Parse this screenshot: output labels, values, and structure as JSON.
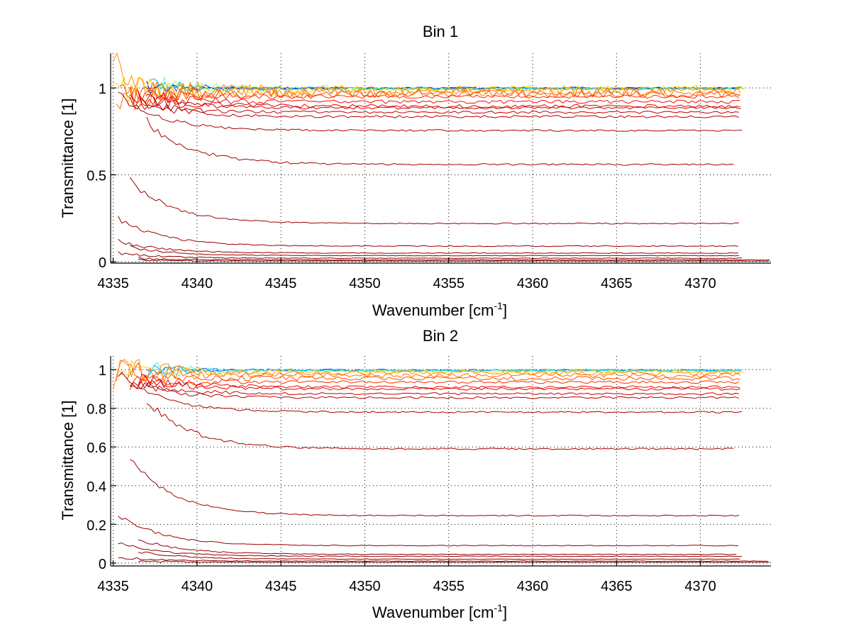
{
  "figure": {
    "background": "#ffffff"
  },
  "chart_data": [
    {
      "type": "line",
      "title": "Bin 1",
      "xlabel": "Wavenumber [cm",
      "xlabel_sup": "-1",
      "xlabel_tail": "]",
      "ylabel": "Transmittance [1]",
      "xlim": [
        4334.85,
        4374.2
      ],
      "ylim": [
        -0.008,
        1.2
      ],
      "xticks": [
        4335,
        4340,
        4345,
        4350,
        4355,
        4360,
        4365,
        4370
      ],
      "xtick_labels": [
        "4335",
        "4340",
        "4345",
        "4350",
        "4355",
        "4360",
        "4365",
        "4370"
      ],
      "yticks": [
        0,
        0.5,
        1
      ],
      "ytick_labels": [
        "0",
        "0.5",
        "1"
      ],
      "grid": true,
      "colormap": "jet (blue = highest transmittance, dark red = lowest)",
      "series": [
        {
          "name": "curve-01",
          "color": "#00008f",
          "level": 0.999,
          "x_start": 4337.0,
          "x_end": 4372.5,
          "start_offset": 0.02,
          "noise": 0.015
        },
        {
          "name": "curve-02",
          "color": "#0040ff",
          "level": 0.997,
          "x_start": 4337.0,
          "x_end": 4372.5,
          "start_offset": 0.03,
          "noise": 0.02
        },
        {
          "name": "curve-03",
          "color": "#00c0ff",
          "level": 0.996,
          "x_start": 4337.2,
          "x_end": 4372.5,
          "start_offset": 0.05,
          "noise": 0.02
        },
        {
          "name": "curve-04",
          "color": "#80ff80",
          "level": 0.995,
          "x_start": 4337.4,
          "x_end": 4372.6,
          "start_offset": 0.08,
          "noise": 0.02
        },
        {
          "name": "curve-05",
          "color": "#ffd000",
          "level": 0.993,
          "x_start": 4335.0,
          "x_end": 4372.8,
          "start_offset": 0.1,
          "noise": 0.06
        },
        {
          "name": "curve-06",
          "color": "#ff9000",
          "level": 0.985,
          "x_start": 4335.0,
          "x_end": 4372.6,
          "start_offset": 0.12,
          "noise": 0.08
        },
        {
          "name": "curve-07",
          "color": "#ff7000",
          "level": 0.975,
          "x_start": 4335.2,
          "x_end": 4372.5,
          "start_offset": 0.1,
          "noise": 0.08
        },
        {
          "name": "curve-08",
          "color": "#ff5000",
          "level": 0.965,
          "x_start": 4335.4,
          "x_end": 4372.5,
          "start_offset": 0.08,
          "noise": 0.06
        },
        {
          "name": "curve-09",
          "color": "#ff3000",
          "level": 0.95,
          "x_start": 4336.0,
          "x_end": 4372.5,
          "start_offset": 0.02,
          "noise": 0.03
        },
        {
          "name": "curve-10",
          "color": "#f01000",
          "level": 0.92,
          "x_start": 4336.5,
          "x_end": 4372.5,
          "start_offset": 0.03,
          "noise": 0.03
        },
        {
          "name": "curve-11",
          "color": "#e00000",
          "level": 0.895,
          "x_start": 4336.5,
          "x_end": 4372.5,
          "start_offset": 0.04,
          "noise": 0.03
        },
        {
          "name": "curve-12",
          "color": "#d00000",
          "level": 0.885,
          "x_start": 4337.0,
          "x_end": 4372.5,
          "start_offset": 0.05,
          "noise": 0.02
        },
        {
          "name": "curve-13",
          "color": "#c00000",
          "level": 0.86,
          "x_start": 4336.0,
          "x_end": 4372.3,
          "start_offset": 0.06,
          "noise": 0.02
        },
        {
          "name": "curve-14",
          "color": "#b80000",
          "level": 0.835,
          "x_start": 4336.0,
          "x_end": 4372.3,
          "start_offset": 0.1,
          "noise": 0.02
        },
        {
          "name": "curve-15",
          "color": "#b00000",
          "level": 0.755,
          "x_start": 4335.3,
          "x_end": 4372.5,
          "start_offset": 0.2,
          "noise": 0.015
        },
        {
          "name": "curve-16",
          "color": "#a80000",
          "level": 0.56,
          "x_start": 4337.0,
          "x_end": 4372.0,
          "start_offset": 0.25,
          "noise": 0.015
        },
        {
          "name": "curve-17",
          "color": "#a00000",
          "level": 0.22,
          "x_start": 4336.0,
          "x_end": 4372.3,
          "start_offset": 0.25,
          "noise": 0.01
        },
        {
          "name": "curve-18",
          "color": "#9c0000",
          "level": 0.09,
          "x_start": 4335.3,
          "x_end": 4372.3,
          "start_offset": 0.16,
          "noise": 0.008
        },
        {
          "name": "curve-19",
          "color": "#980000",
          "level": 0.05,
          "x_start": 4335.3,
          "x_end": 4372.3,
          "start_offset": 0.07,
          "noise": 0.006
        },
        {
          "name": "curve-20",
          "color": "#940000",
          "level": 0.035,
          "x_start": 4336.0,
          "x_end": 4372.5,
          "start_offset": 0.05,
          "noise": 0.005
        },
        {
          "name": "curve-21",
          "color": "#900000",
          "level": 0.02,
          "x_start": 4335.3,
          "x_end": 4372.5,
          "start_offset": 0.03,
          "noise": 0.005
        },
        {
          "name": "curve-22",
          "color": "#8c0000",
          "level": 0.01,
          "x_start": 4336.5,
          "x_end": 4374.2,
          "start_offset": 0.01,
          "noise": 0.004
        },
        {
          "name": "curve-23",
          "color": "#880000",
          "level": 0.004,
          "x_start": 4336.5,
          "x_end": 4374.2,
          "start_offset": 0.005,
          "noise": 0.003
        }
      ]
    },
    {
      "type": "line",
      "title": "Bin 2",
      "xlabel": "Wavenumber [cm",
      "xlabel_sup": "-1",
      "xlabel_tail": "]",
      "ylabel": "Transmittance [1]",
      "xlim": [
        4334.85,
        4374.2
      ],
      "ylim": [
        -0.015,
        1.07
      ],
      "xticks": [
        4335,
        4340,
        4345,
        4350,
        4355,
        4360,
        4365,
        4370
      ],
      "xtick_labels": [
        "4335",
        "4340",
        "4345",
        "4350",
        "4355",
        "4360",
        "4365",
        "4370"
      ],
      "yticks": [
        0,
        0.2,
        0.4,
        0.6,
        0.8,
        1
      ],
      "ytick_labels": [
        "0",
        "0.2",
        "0.4",
        "0.6",
        "0.8",
        "1"
      ],
      "grid": true,
      "colormap": "jet (blue = highest transmittance, dark red = lowest)",
      "series": [
        {
          "name": "curve-01",
          "color": "#0050ff",
          "level": 0.998,
          "x_start": 4337.0,
          "x_end": 4372.5,
          "start_offset": 0.02,
          "noise": 0.012
        },
        {
          "name": "curve-02",
          "color": "#00a0ff",
          "level": 0.996,
          "x_start": 4337.0,
          "x_end": 4372.5,
          "start_offset": 0.03,
          "noise": 0.015
        },
        {
          "name": "curve-03",
          "color": "#40ffc0",
          "level": 0.994,
          "x_start": 4337.2,
          "x_end": 4372.6,
          "start_offset": 0.04,
          "noise": 0.015
        },
        {
          "name": "curve-04",
          "color": "#ffd000",
          "level": 0.99,
          "x_start": 4335.0,
          "x_end": 4372.8,
          "start_offset": 0.06,
          "noise": 0.03
        },
        {
          "name": "curve-05",
          "color": "#ff9000",
          "level": 0.982,
          "x_start": 4335.0,
          "x_end": 4372.6,
          "start_offset": 0.07,
          "noise": 0.035
        },
        {
          "name": "curve-06",
          "color": "#ff7000",
          "level": 0.97,
          "x_start": 4335.2,
          "x_end": 4372.5,
          "start_offset": 0.07,
          "noise": 0.035
        },
        {
          "name": "curve-07",
          "color": "#ff5000",
          "level": 0.955,
          "x_start": 4335.4,
          "x_end": 4372.5,
          "start_offset": 0.06,
          "noise": 0.03
        },
        {
          "name": "curve-08",
          "color": "#ff3000",
          "level": 0.935,
          "x_start": 4336.0,
          "x_end": 4372.5,
          "start_offset": 0.04,
          "noise": 0.02
        },
        {
          "name": "curve-09",
          "color": "#f01000",
          "level": 0.91,
          "x_start": 4336.5,
          "x_end": 4372.5,
          "start_offset": 0.04,
          "noise": 0.02
        },
        {
          "name": "curve-10",
          "color": "#e00000",
          "level": 0.9,
          "x_start": 4336.5,
          "x_end": 4372.5,
          "start_offset": 0.05,
          "noise": 0.02
        },
        {
          "name": "curve-11",
          "color": "#c80000",
          "level": 0.875,
          "x_start": 4336.0,
          "x_end": 4372.3,
          "start_offset": 0.06,
          "noise": 0.015
        },
        {
          "name": "curve-12",
          "color": "#b80000",
          "level": 0.855,
          "x_start": 4336.0,
          "x_end": 4372.3,
          "start_offset": 0.08,
          "noise": 0.015
        },
        {
          "name": "curve-13",
          "color": "#b00000",
          "level": 0.78,
          "x_start": 4335.3,
          "x_end": 4372.5,
          "start_offset": 0.2,
          "noise": 0.012
        },
        {
          "name": "curve-14",
          "color": "#a80000",
          "level": 0.59,
          "x_start": 4337.0,
          "x_end": 4372.0,
          "start_offset": 0.25,
          "noise": 0.012
        },
        {
          "name": "curve-15",
          "color": "#a00000",
          "level": 0.245,
          "x_start": 4336.0,
          "x_end": 4372.3,
          "start_offset": 0.3,
          "noise": 0.008
        },
        {
          "name": "curve-16",
          "color": "#9c0000",
          "level": 0.09,
          "x_start": 4335.3,
          "x_end": 4372.3,
          "start_offset": 0.16,
          "noise": 0.006
        },
        {
          "name": "curve-17",
          "color": "#980000",
          "level": 0.045,
          "x_start": 4336.5,
          "x_end": 4372.3,
          "start_offset": 0.08,
          "noise": 0.005
        },
        {
          "name": "curve-18",
          "color": "#940000",
          "level": 0.035,
          "x_start": 4335.3,
          "x_end": 4372.5,
          "start_offset": 0.07,
          "noise": 0.005
        },
        {
          "name": "curve-19",
          "color": "#900000",
          "level": 0.02,
          "x_start": 4336.5,
          "x_end": 4372.5,
          "start_offset": 0.04,
          "noise": 0.004
        },
        {
          "name": "curve-20",
          "color": "#8c0000",
          "level": 0.01,
          "x_start": 4335.3,
          "x_end": 4374.2,
          "start_offset": 0.02,
          "noise": 0.004
        },
        {
          "name": "curve-21",
          "color": "#880000",
          "level": 0.004,
          "x_start": 4336.5,
          "x_end": 4374.2,
          "start_offset": 0.005,
          "noise": 0.003
        }
      ]
    }
  ]
}
